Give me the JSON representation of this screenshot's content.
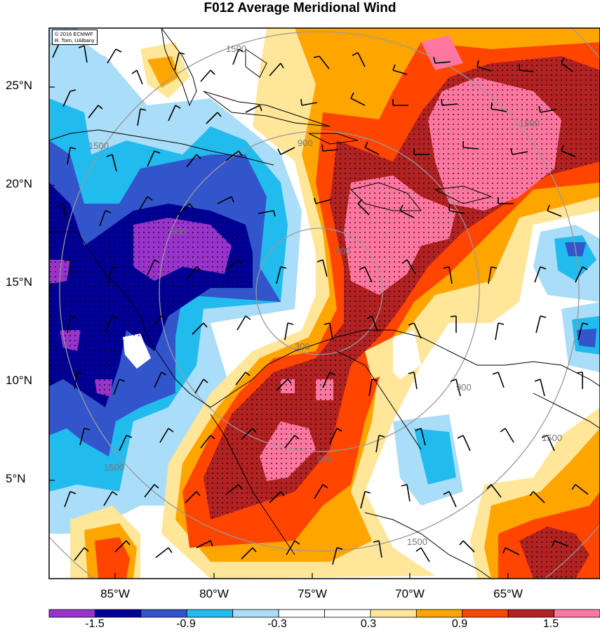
{
  "title": "F012 Average Meridional Wind",
  "copyright": {
    "line1": "© 2016 ECMWF",
    "line2": "R. Torn, UAlbany"
  },
  "latitude_labels": [
    "25°N",
    "20°N",
    "15°N",
    "10°N",
    "5°N"
  ],
  "longitude_labels": [
    "85°W",
    "80°W",
    "75°W",
    "70°W",
    "65°W"
  ],
  "range_ring_labels": [
    "300",
    "300",
    "900",
    "900",
    "900",
    "900",
    "1500",
    "1500",
    "1500",
    "1500",
    "1500",
    "1500"
  ],
  "colorbar": {
    "labels": [
      "-1.5",
      "-0.9",
      "-0.3",
      "0.3",
      "0.9",
      "1.5"
    ],
    "colors": [
      "#9933cc",
      "#000099",
      "#3355cc",
      "#22bbee",
      "#aaddf7",
      "#ffffff",
      "#ffffff",
      "#ffe699",
      "#ffa500",
      "#ff4500",
      "#b22222",
      "#ff77a0"
    ]
  },
  "map": {
    "lat_range": [
      0.5,
      28
    ],
    "lon_range": [
      -88.5,
      -60.5
    ],
    "center": {
      "lat": 14,
      "lon": -74
    },
    "colors": {
      "land": "#000000",
      "rings": "#999999",
      "hatch": "#000000"
    }
  }
}
